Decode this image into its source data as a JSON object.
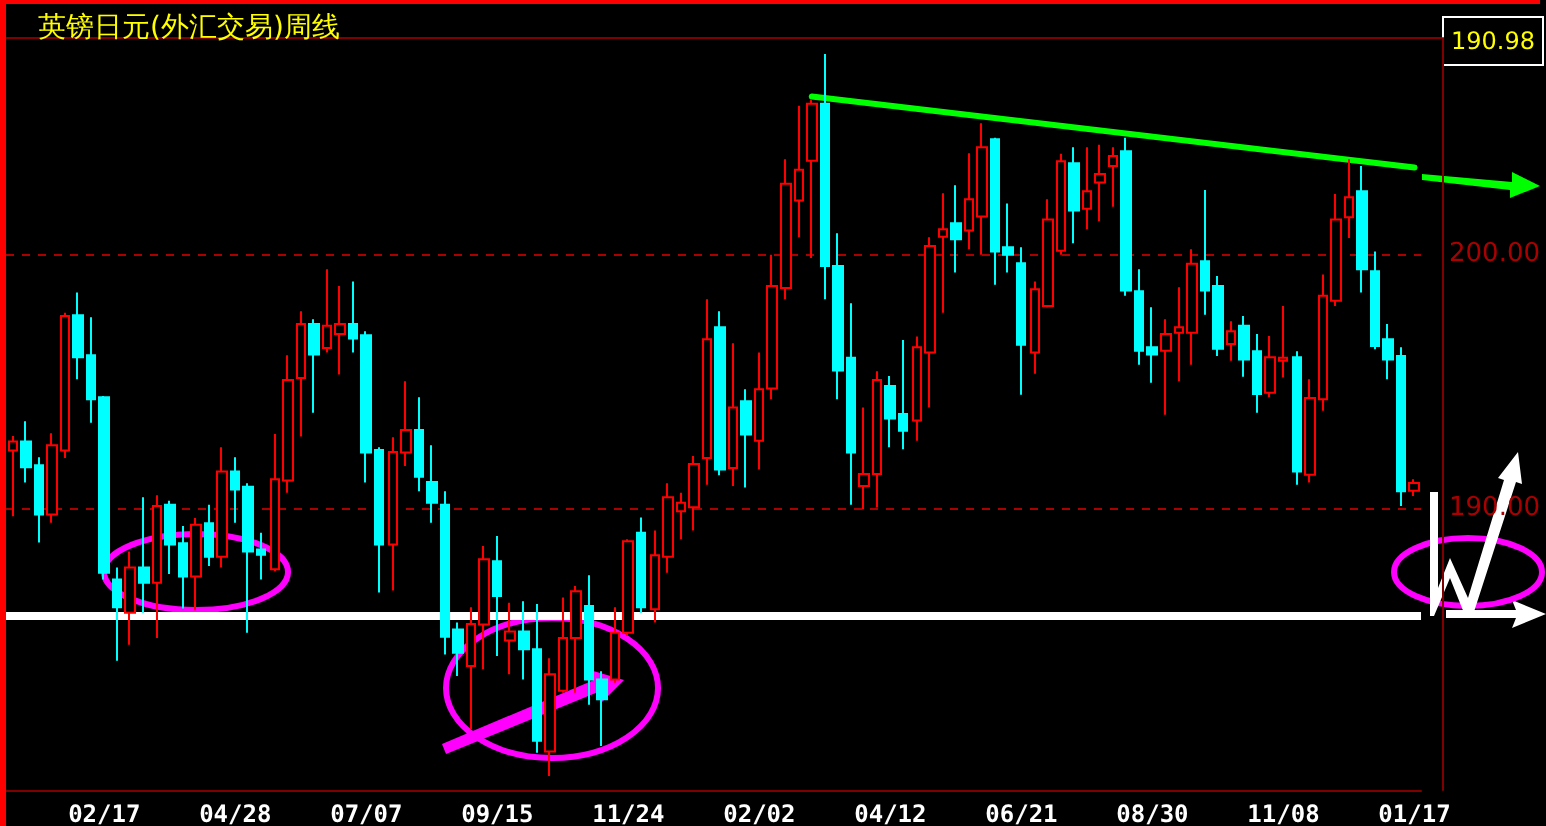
{
  "chart_data": {
    "type": "candlestick",
    "title": "英镑日元(外汇交易)周线",
    "annotations": [
      "190.98"
    ],
    "categories": [
      null,
      null,
      null,
      null,
      null,
      null,
      null,
      "02/17",
      null,
      null,
      null,
      null,
      null,
      null,
      null,
      null,
      null,
      "04/28",
      null,
      null,
      null,
      null,
      null,
      null,
      null,
      null,
      null,
      "07/07",
      null,
      null,
      null,
      null,
      null,
      null,
      null,
      null,
      null,
      "09/15",
      null,
      null,
      null,
      null,
      null,
      null,
      null,
      null,
      null,
      "11/24",
      null,
      null,
      null,
      null,
      null,
      null,
      null,
      null,
      null,
      "02/02",
      null,
      null,
      null,
      null,
      null,
      null,
      null,
      null,
      null,
      "04/12",
      null,
      null,
      null,
      null,
      null,
      null,
      null,
      null,
      null,
      "06/21",
      null,
      null,
      null,
      null,
      null,
      null,
      null,
      null,
      null,
      "08/30",
      null,
      null,
      null,
      null,
      null,
      null,
      null,
      null,
      null,
      "11/08",
      null,
      null,
      null,
      null,
      null,
      null,
      null,
      null,
      null,
      "01/17"
    ],
    "colors": [
      "#ff0000",
      "#00ffff",
      "#00ffff",
      "#ff0000",
      "#ff0000",
      "#00ffff",
      "#00ffff",
      "#00ffff",
      "#00ffff",
      "#ff0000",
      "#00ffff",
      "#ff0000",
      "#00ffff",
      "#00ffff",
      "#ff0000",
      "#00ffff",
      "#ff0000",
      "#00ffff",
      "#00ffff",
      "#00ffff",
      "#ff0000",
      "#ff0000",
      "#ff0000",
      "#00ffff",
      "#ff0000",
      "#ff0000",
      "#00ffff",
      "#00ffff",
      "#00ffff",
      "#ff0000",
      "#ff0000",
      "#00ffff",
      "#00ffff",
      "#00ffff",
      "#00ffff",
      "#ff0000",
      "#ff0000",
      "#00ffff",
      "#ff0000",
      "#00ffff",
      "#00ffff",
      "#ff0000",
      "#ff0000",
      "#ff0000",
      "#00ffff",
      "#00ffff",
      "#ff0000",
      "#ff0000",
      "#00ffff",
      "#ff0000",
      "#ff0000",
      "#ff0000",
      "#ff0000",
      "#ff0000",
      "#00ffff",
      "#ff0000",
      "#00ffff",
      "#ff0000",
      "#ff0000",
      "#ff0000",
      "#ff0000",
      "#ff0000",
      "#00ffff",
      "#00ffff",
      "#00ffff",
      "#ff0000",
      "#ff0000",
      "#00ffff",
      "#00ffff",
      "#ff0000",
      "#ff0000",
      "#ff0000",
      "#00ffff",
      "#ff0000",
      "#ff0000",
      "#00ffff",
      "#00ffff",
      "#00ffff",
      "#ff0000",
      "#ff0000",
      "#ff0000",
      "#00ffff",
      "#ff0000",
      "#ff0000",
      "#ff0000",
      "#00ffff",
      "#00ffff",
      "#00ffff",
      "#ff0000",
      "#ff0000",
      "#ff0000",
      "#00ffff",
      "#00ffff",
      "#ff0000",
      "#00ffff",
      "#00ffff",
      "#ff0000",
      "#ff0000",
      "#00ffff",
      "#ff0000",
      "#ff0000",
      "#ff0000",
      "#ff0000",
      "#00ffff",
      "#00ffff",
      "#00ffff",
      "#00ffff",
      "#ff0000"
    ],
    "ohlc": [
      [
        192.26,
        192.83,
        189.68,
        192.62
      ],
      [
        192.62,
        193.41,
        191.0,
        191.6
      ],
      [
        191.68,
        192.0,
        188.64,
        189.74
      ],
      [
        189.74,
        192.94,
        189.42,
        192.47
      ],
      [
        192.26,
        197.69,
        191.97,
        197.56
      ],
      [
        197.59,
        198.48,
        195.07,
        195.93
      ],
      [
        196.01,
        197.51,
        193.36,
        194.28
      ],
      [
        194.36,
        194.41,
        187.19,
        187.45
      ],
      [
        187.19,
        187.66,
        183.99,
        186.09
      ],
      [
        185.88,
        188.29,
        184.62,
        187.66
      ],
      [
        187.66,
        190.42,
        185.88,
        187.06
      ],
      [
        187.06,
        190.5,
        184.88,
        190.08
      ],
      [
        190.13,
        190.29,
        187.4,
        188.56
      ],
      [
        188.61,
        189.29,
        186.04,
        187.3
      ],
      [
        187.3,
        189.61,
        185.98,
        189.34
      ],
      [
        189.4,
        190.13,
        187.72,
        188.08
      ],
      [
        188.08,
        192.39,
        187.66,
        191.44
      ],
      [
        191.44,
        192.0,
        189.42,
        190.73
      ],
      [
        190.84,
        190.97,
        185.09,
        188.29
      ],
      [
        188.37,
        189.03,
        187.19,
        188.16
      ],
      [
        187.59,
        192.91,
        187.51,
        191.13
      ],
      [
        191.08,
        196.01,
        190.6,
        195.04
      ],
      [
        195.12,
        197.74,
        192.81,
        197.24
      ],
      [
        197.24,
        197.43,
        193.75,
        196.04
      ],
      [
        196.3,
        199.4,
        196.12,
        197.17
      ],
      [
        196.85,
        198.74,
        195.25,
        197.24
      ],
      [
        197.24,
        198.92,
        196.12,
        196.67
      ],
      [
        196.8,
        196.96,
        191.0,
        192.18
      ],
      [
        192.28,
        192.39,
        186.67,
        188.56
      ],
      [
        188.56,
        192.78,
        186.75,
        192.2
      ],
      [
        192.18,
        194.99,
        191.65,
        193.07
      ],
      [
        193.07,
        194.36,
        190.66,
        191.23
      ],
      [
        191.02,
        192.47,
        189.42,
        190.21
      ],
      [
        190.13,
        190.66,
        184.23,
        184.93
      ],
      [
        185.22,
        185.49,
        183.39,
        184.3
      ],
      [
        183.78,
        186.09,
        181.29,
        185.43
      ],
      [
        185.41,
        188.5,
        183.65,
        187.98
      ],
      [
        187.9,
        188.9,
        184.17,
        186.54
      ],
      [
        184.78,
        186.27,
        183.46,
        185.14
      ],
      [
        185.14,
        186.33,
        183.25,
        184.44
      ],
      [
        184.44,
        186.22,
        180.37,
        180.84
      ],
      [
        180.42,
        184.09,
        179.45,
        183.46
      ],
      [
        182.81,
        186.48,
        182.73,
        184.88
      ],
      [
        184.88,
        186.93,
        182.73,
        186.72
      ],
      [
        186.14,
        187.35,
        182.26,
        183.25
      ],
      [
        183.25,
        183.57,
        180.63,
        182.47
      ],
      [
        183.25,
        186.09,
        183.12,
        185.09
      ],
      [
        185.09,
        188.77,
        184.96,
        188.69
      ],
      [
        189.03,
        189.63,
        185.88,
        186.09
      ],
      [
        186.01,
        189.11,
        185.49,
        188.14
      ],
      [
        188.08,
        190.97,
        187.45,
        190.42
      ],
      [
        189.87,
        190.6,
        188.77,
        190.21
      ],
      [
        190.03,
        192.05,
        189.11,
        191.73
      ],
      [
        191.97,
        198.22,
        190.92,
        196.64
      ],
      [
        197.11,
        197.74,
        191.29,
        191.52
      ],
      [
        191.57,
        196.48,
        190.87,
        193.96
      ],
      [
        194.2,
        194.67,
        190.81,
        192.89
      ],
      [
        192.65,
        196.12,
        191.52,
        194.67
      ],
      [
        194.7,
        199.97,
        194.28,
        198.74
      ],
      [
        198.66,
        203.73,
        198.22,
        202.76
      ],
      [
        202.1,
        205.83,
        200.66,
        203.31
      ],
      [
        203.67,
        206.09,
        199.84,
        205.91
      ],
      [
        205.91,
        207.87,
        198.22,
        199.53
      ],
      [
        199.53,
        200.81,
        194.28,
        195.41
      ],
      [
        195.91,
        198.06,
        190.13,
        192.18
      ],
      [
        190.87,
        193.96,
        189.95,
        191.34
      ],
      [
        191.34,
        195.38,
        190.03,
        195.04
      ],
      [
        194.8,
        195.2,
        192.39,
        193.52
      ],
      [
        193.7,
        196.61,
        192.31,
        193.04
      ],
      [
        193.44,
        196.75,
        192.65,
        196.33
      ],
      [
        196.12,
        200.66,
        193.96,
        200.31
      ],
      [
        200.68,
        202.39,
        197.69,
        200.97
      ],
      [
        201.21,
        202.7,
        199.27,
        200.58
      ],
      [
        200.92,
        203.96,
        200.18,
        202.15
      ],
      [
        201.47,
        205.14,
        199.97,
        204.2
      ],
      [
        204.51,
        204.57,
        198.79,
        200.1
      ],
      [
        200.26,
        201.99,
        199.27,
        199.97
      ],
      [
        199.63,
        200.26,
        194.46,
        196.43
      ],
      [
        196.12,
        198.92,
        195.28,
        198.61
      ],
      [
        197.95,
        202.15,
        197.9,
        201.36
      ],
      [
        200.13,
        203.94,
        199.97,
        203.65
      ],
      [
        203.57,
        204.2,
        200.42,
        201.71
      ],
      [
        201.78,
        204.2,
        200.97,
        202.47
      ],
      [
        202.81,
        204.3,
        201.29,
        203.15
      ],
      [
        203.46,
        204.2,
        201.86,
        203.86
      ],
      [
        204.04,
        204.57,
        198.35,
        198.56
      ],
      [
        198.53,
        199.4,
        195.64,
        196.19
      ],
      [
        196.33,
        197.9,
        194.93,
        196.04
      ],
      [
        196.19,
        197.43,
        193.67,
        196.85
      ],
      [
        196.9,
        198.69,
        194.99,
        197.11
      ],
      [
        196.9,
        200.18,
        195.64,
        199.61
      ],
      [
        199.71,
        202.52,
        197.61,
        198.56
      ],
      [
        198.74,
        199.13,
        195.98,
        196.27
      ],
      [
        196.46,
        197.35,
        195.8,
        196.96
      ],
      [
        197.17,
        197.56,
        195.17,
        195.85
      ],
      [
        196.17,
        196.85,
        193.75,
        194.49
      ],
      [
        194.54,
        196.77,
        194.36,
        195.93
      ],
      [
        195.8,
        197.95,
        195.14,
        195.91
      ],
      [
        195.93,
        196.17,
        190.92,
        191.44
      ],
      [
        191.31,
        195.07,
        191.0,
        194.33
      ],
      [
        194.28,
        199.19,
        193.83,
        198.35
      ],
      [
        198.16,
        202.36,
        197.95,
        201.36
      ],
      [
        201.44,
        203.73,
        200.63,
        202.23
      ],
      [
        202.47,
        203.46,
        198.48,
        199.4
      ],
      [
        199.32,
        200.1,
        196.25,
        196.38
      ],
      [
        196.64,
        197.24,
        195.07,
        195.85
      ],
      [
        195.98,
        196.33,
        190.08,
        190.66
      ],
      [
        190.68,
        191.13,
        190.47,
        190.98
      ]
    ],
    "series": [
      {
        "type": "line",
        "color": "#00ff00",
        "values": [
          null,
          null,
          null,
          null,
          null,
          null,
          null,
          null,
          null,
          null,
          null,
          null,
          null,
          null,
          null,
          null,
          null,
          null,
          null,
          null,
          null,
          null,
          null,
          null,
          null,
          null,
          null,
          null,
          null,
          null,
          null,
          null,
          null,
          null,
          null,
          null,
          null,
          null,
          null,
          null,
          null,
          null,
          null,
          null,
          null,
          null,
          null,
          null,
          null,
          null,
          null,
          null,
          null,
          null,
          null,
          null,
          null,
          null,
          null,
          null,
          null,
          206.2,
          null,
          null,
          null,
          null,
          null,
          null,
          null,
          null,
          null,
          null,
          null,
          null,
          null,
          null,
          null,
          null,
          null,
          null,
          null,
          null,
          null,
          null,
          null,
          null,
          null,
          null,
          null,
          null,
          null,
          null,
          null,
          null,
          null,
          null,
          null,
          null,
          null,
          null,
          null,
          null,
          null,
          null,
          null,
          null,
          null,
          203.4
        ]
      }
    ],
    "ref_lines": [
      {
        "axis": "y",
        "value": 185.8,
        "label": null,
        "color": "#ffffff"
      }
    ],
    "ylim": [
      178.9,
      208.5
    ],
    "yticks": [
      {
        "value": 200,
        "label": "200.00"
      },
      {
        "value": 190,
        "label": "190.00"
      }
    ],
    "grid": "y"
  }
}
